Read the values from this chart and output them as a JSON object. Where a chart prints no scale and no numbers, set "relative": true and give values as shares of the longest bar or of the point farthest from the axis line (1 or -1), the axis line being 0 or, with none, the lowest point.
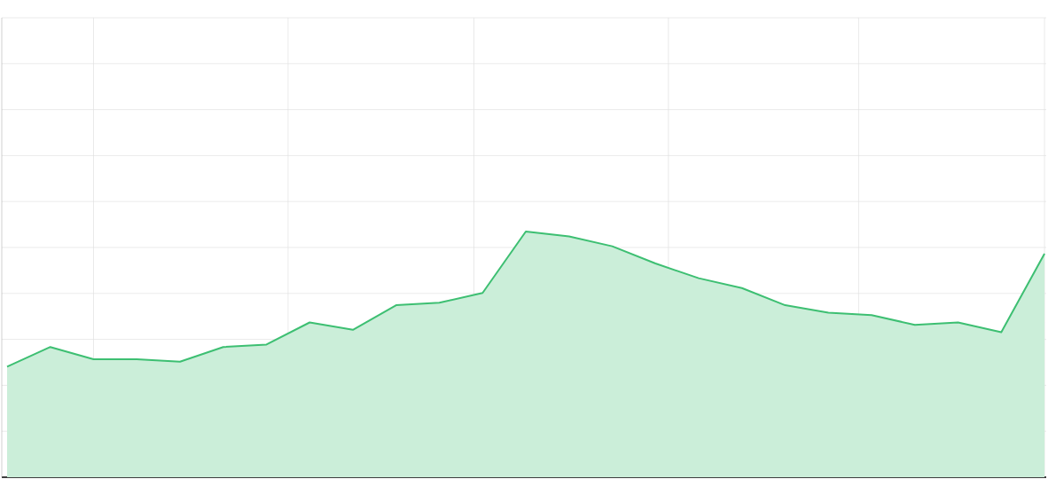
{
  "chart_data": {
    "type": "area",
    "relative": true,
    "grid": true,
    "color": "#3dbf72",
    "categories": [
      null,
      null,
      null,
      null,
      null,
      null,
      null,
      null,
      null,
      null,
      null,
      null,
      null,
      null,
      null,
      null,
      null,
      null,
      null,
      null,
      null,
      null,
      null,
      null,
      null
    ],
    "values": [
      0.45,
      0.53,
      0.48,
      0.48,
      0.47,
      0.53,
      0.54,
      0.63,
      0.6,
      0.7,
      0.71,
      0.75,
      1,
      0.98,
      0.94,
      0.87,
      0.81,
      0.77,
      0.7,
      0.67,
      0.66,
      0.62,
      0.63,
      0.59,
      0.91
    ]
  }
}
